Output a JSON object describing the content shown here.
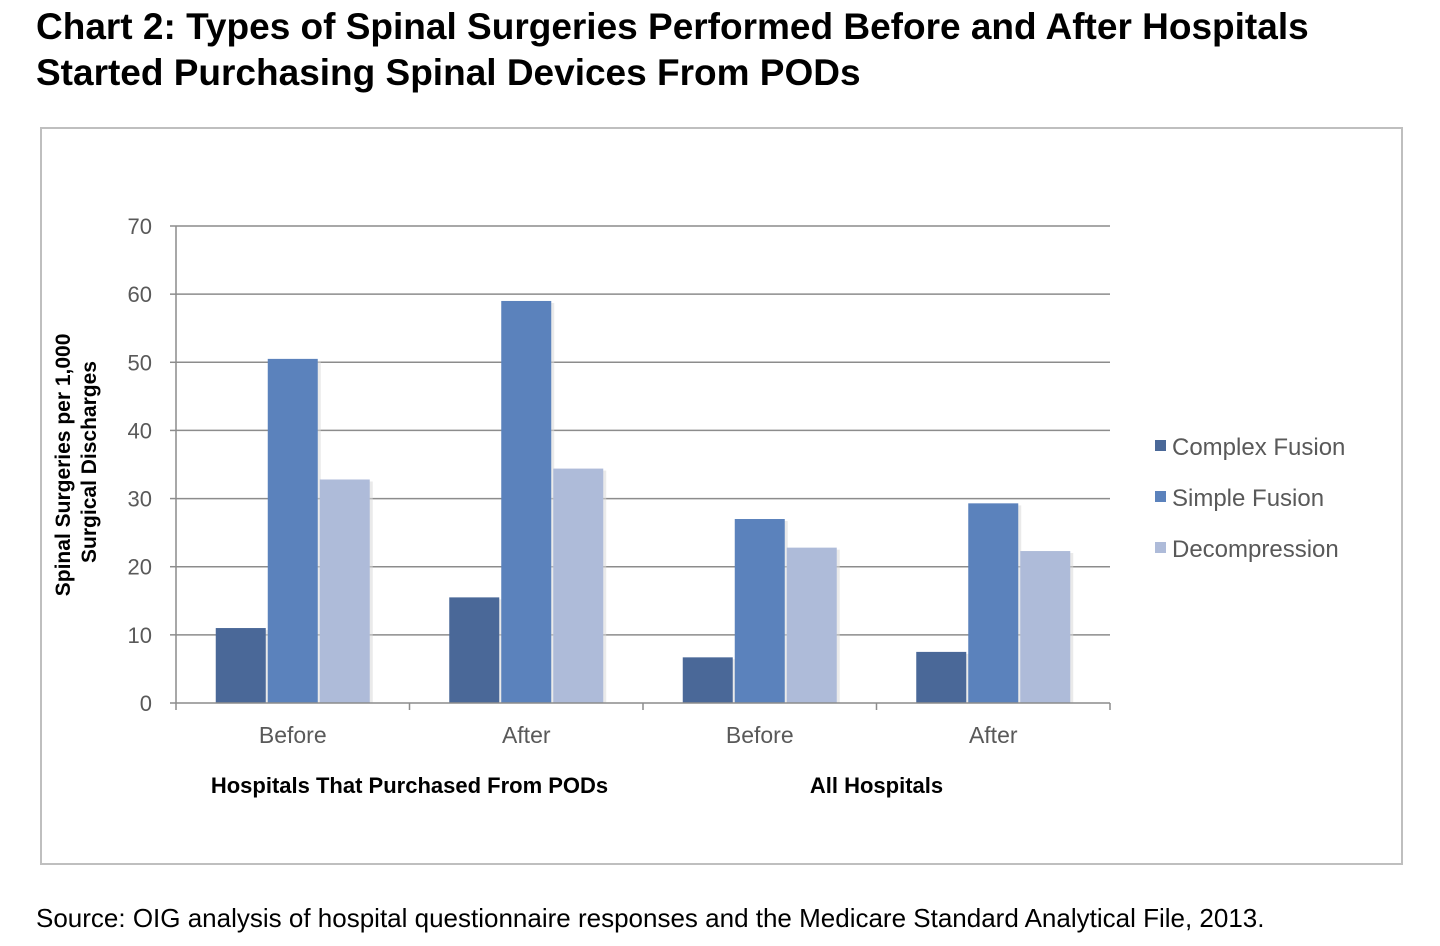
{
  "title_line1": "Chart 2:  Types of Spinal Surgeries Performed Before and After Hospitals",
  "title_line2": "Started Purchasing Spinal Devices From PODs",
  "source": "Source:  OIG analysis of hospital questionnaire responses and the Medicare Standard Analytical File, 2013.",
  "chart_data": {
    "type": "bar",
    "title": "Chart 2:  Types of Spinal Surgeries Performed Before and After Hospitals Started Purchasing Spinal Devices From PODs",
    "ylabel": "Spinal Surgeries per 1,000 Surgical Discharges",
    "ylabel_lines": [
      "Spinal Surgeries per 1,000",
      "Surgical Discharges"
    ],
    "categories": [
      "Before",
      "After",
      "Before",
      "After"
    ],
    "groups": [
      {
        "label": "Hospitals That Purchased From PODs",
        "span": [
          0,
          1
        ]
      },
      {
        "label": "All Hospitals",
        "span": [
          2,
          3
        ]
      }
    ],
    "series": [
      {
        "name": "Complex Fusion",
        "color": "#4a6898",
        "values": [
          11,
          15.5,
          6.7,
          7.5
        ]
      },
      {
        "name": "Simple Fusion",
        "color": "#5b82bc",
        "values": [
          50.5,
          59,
          27,
          29.3
        ]
      },
      {
        "name": "Decompression",
        "color": "#aebbd9",
        "values": [
          32.8,
          34.4,
          22.8,
          22.3
        ]
      }
    ],
    "ylim": [
      0,
      70
    ],
    "yticks": [
      0,
      10,
      20,
      30,
      40,
      50,
      60,
      70
    ],
    "grid": true,
    "legend_position": "right"
  }
}
